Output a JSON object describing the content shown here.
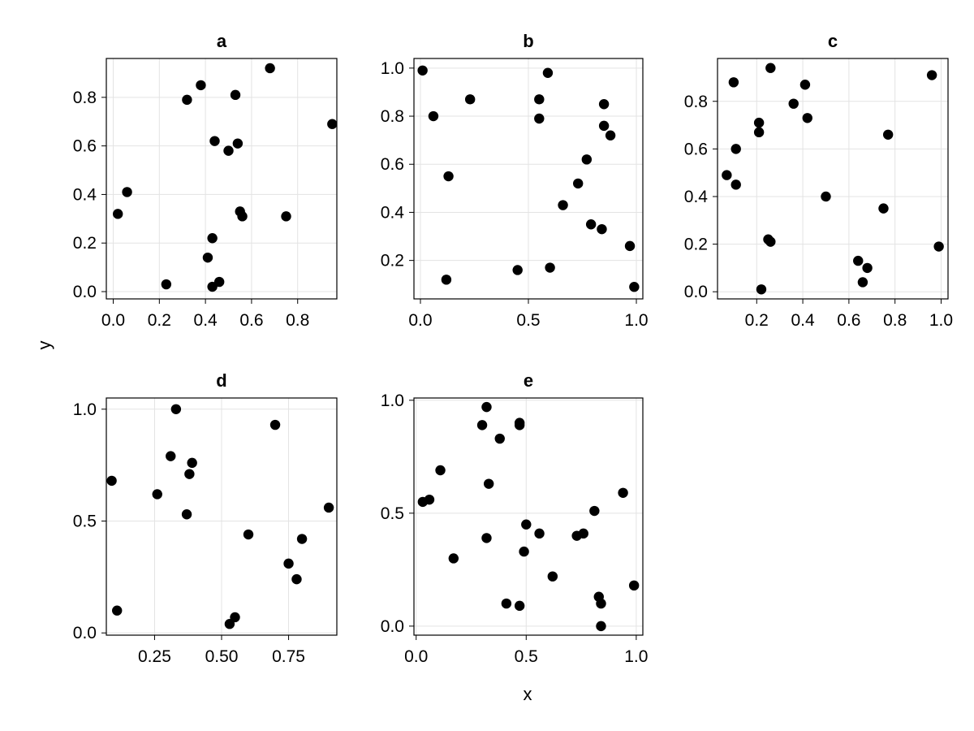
{
  "figure": {
    "xlabel": "x",
    "ylabel": "y"
  },
  "chart_data": [
    {
      "type": "scatter",
      "title": "a",
      "xlim": [
        -0.03,
        0.97
      ],
      "ylim": [
        -0.03,
        0.96
      ],
      "xticks": [
        0.0,
        0.2,
        0.4,
        0.6,
        0.8
      ],
      "xtick_labels": [
        "0.0",
        "0.2",
        "0.4",
        "0.6",
        "0.8"
      ],
      "yticks": [
        0.0,
        0.2,
        0.4,
        0.6,
        0.8
      ],
      "ytick_labels": [
        "0.0",
        "0.2",
        "0.4",
        "0.6",
        "0.8"
      ],
      "grid": true,
      "marker_color": "#000000",
      "x": [
        0.02,
        0.06,
        0.23,
        0.32,
        0.38,
        0.41,
        0.43,
        0.43,
        0.44,
        0.46,
        0.5,
        0.53,
        0.54,
        0.55,
        0.56,
        0.68,
        0.75,
        0.95
      ],
      "y": [
        0.32,
        0.41,
        0.03,
        0.79,
        0.85,
        0.14,
        0.22,
        0.02,
        0.62,
        0.04,
        0.58,
        0.81,
        0.61,
        0.33,
        0.31,
        0.92,
        0.31,
        0.69
      ]
    },
    {
      "type": "scatter",
      "title": "b",
      "xlim": [
        -0.03,
        1.03
      ],
      "ylim": [
        0.04,
        1.04
      ],
      "xticks": [
        0.0,
        0.5,
        1.0
      ],
      "xtick_labels": [
        "0.0",
        "0.5",
        "1.0"
      ],
      "yticks": [
        0.2,
        0.4,
        0.6,
        0.8,
        1.0
      ],
      "ytick_labels": [
        "0.2",
        "0.4",
        "0.6",
        "0.8",
        "1.0"
      ],
      "grid": true,
      "marker_color": "#000000",
      "x": [
        0.01,
        0.06,
        0.12,
        0.13,
        0.23,
        0.45,
        0.55,
        0.55,
        0.59,
        0.6,
        0.66,
        0.73,
        0.77,
        0.79,
        0.84,
        0.85,
        0.85,
        0.88,
        0.97,
        0.99
      ],
      "y": [
        0.99,
        0.8,
        0.12,
        0.55,
        0.87,
        0.16,
        0.79,
        0.87,
        0.98,
        0.17,
        0.43,
        0.52,
        0.62,
        0.35,
        0.33,
        0.76,
        0.85,
        0.72,
        0.26,
        0.09
      ]
    },
    {
      "type": "scatter",
      "title": "c",
      "xlim": [
        0.03,
        1.03
      ],
      "ylim": [
        -0.03,
        0.98
      ],
      "xticks": [
        0.2,
        0.4,
        0.6,
        0.8,
        1.0
      ],
      "xtick_labels": [
        "0.2",
        "0.4",
        "0.6",
        "0.8",
        "1.0"
      ],
      "yticks": [
        0.0,
        0.2,
        0.4,
        0.6,
        0.8
      ],
      "ytick_labels": [
        "0.0",
        "0.2",
        "0.4",
        "0.6",
        "0.8"
      ],
      "grid": true,
      "marker_color": "#000000",
      "x": [
        0.07,
        0.1,
        0.11,
        0.11,
        0.21,
        0.21,
        0.22,
        0.25,
        0.26,
        0.26,
        0.36,
        0.41,
        0.42,
        0.5,
        0.64,
        0.66,
        0.68,
        0.75,
        0.77,
        0.96,
        0.99
      ],
      "y": [
        0.49,
        0.88,
        0.6,
        0.45,
        0.71,
        0.67,
        0.01,
        0.22,
        0.21,
        0.94,
        0.79,
        0.87,
        0.73,
        0.4,
        0.13,
        0.04,
        0.1,
        0.35,
        0.66,
        0.91,
        0.19
      ]
    },
    {
      "type": "scatter",
      "title": "d",
      "xlim": [
        0.07,
        0.93
      ],
      "ylim": [
        -0.01,
        1.05
      ],
      "xticks": [
        0.25,
        0.5,
        0.75
      ],
      "xtick_labels": [
        "0.25",
        "0.50",
        "0.75"
      ],
      "yticks": [
        0.0,
        0.5,
        1.0
      ],
      "ytick_labels": [
        "0.0",
        "0.5",
        "1.0"
      ],
      "grid": true,
      "marker_color": "#000000",
      "x": [
        0.09,
        0.11,
        0.26,
        0.31,
        0.33,
        0.37,
        0.38,
        0.39,
        0.53,
        0.55,
        0.6,
        0.7,
        0.75,
        0.78,
        0.8,
        0.9
      ],
      "y": [
        0.68,
        0.1,
        0.62,
        0.79,
        1.0,
        0.53,
        0.71,
        0.76,
        0.04,
        0.07,
        0.44,
        0.93,
        0.31,
        0.24,
        0.42,
        0.56
      ]
    },
    {
      "type": "scatter",
      "title": "e",
      "xlim": [
        -0.01,
        1.03
      ],
      "ylim": [
        -0.04,
        1.01
      ],
      "xticks": [
        0.0,
        0.5,
        1.0
      ],
      "xtick_labels": [
        "0.0",
        "0.5",
        "1.0"
      ],
      "yticks": [
        0.0,
        0.5,
        1.0
      ],
      "ytick_labels": [
        "0.0",
        "0.5",
        "1.0"
      ],
      "grid": true,
      "marker_color": "#000000",
      "x": [
        0.03,
        0.06,
        0.11,
        0.17,
        0.3,
        0.32,
        0.32,
        0.33,
        0.38,
        0.41,
        0.47,
        0.47,
        0.47,
        0.49,
        0.5,
        0.56,
        0.62,
        0.73,
        0.76,
        0.81,
        0.83,
        0.84,
        0.84,
        0.94,
        0.99
      ],
      "y": [
        0.55,
        0.56,
        0.69,
        0.3,
        0.89,
        0.97,
        0.39,
        0.63,
        0.83,
        0.1,
        0.9,
        0.89,
        0.09,
        0.33,
        0.45,
        0.41,
        0.22,
        0.4,
        0.41,
        0.51,
        0.13,
        0.1,
        0.0,
        0.59,
        0.18
      ]
    }
  ]
}
